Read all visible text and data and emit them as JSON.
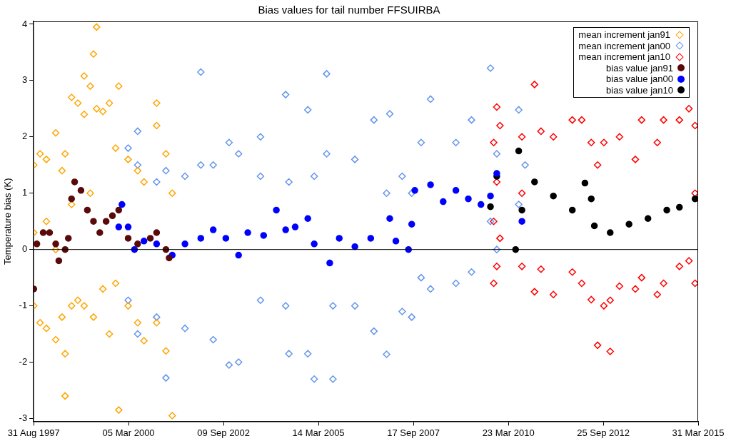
{
  "chart_data": {
    "type": "scatter",
    "title": "Bias values for tail number FFSUIRBA",
    "ylabel": "Temperature bias (K)",
    "xlim": [
      "1997-08-31",
      "2015-03-31"
    ],
    "ylim": [
      -3.05,
      4.05
    ],
    "xticks": [
      {
        "value": "1997-08-31",
        "label": "31 Aug 1997"
      },
      {
        "value": "2000-03-05",
        "label": "05 Mar 2000"
      },
      {
        "value": "2002-09-09",
        "label": "09 Sep 2002"
      },
      {
        "value": "2005-03-14",
        "label": "14 Mar 2005"
      },
      {
        "value": "2007-09-17",
        "label": "17 Sep 2007"
      },
      {
        "value": "2010-03-23",
        "label": "23 Mar 2010"
      },
      {
        "value": "2012-09-25",
        "label": "25 Sep 2012"
      },
      {
        "value": "2015-03-31",
        "label": "31 Mar 2015"
      }
    ],
    "yticks": [
      -3,
      -2,
      -1,
      0,
      1,
      2,
      3,
      4
    ],
    "grid": false,
    "legend": "top right",
    "ref_lines": [
      {
        "axis": "y",
        "value": 0,
        "color": "#000000"
      }
    ],
    "series": [
      {
        "name": "mean increment jan91",
        "marker": "diamond",
        "color": "#ffa500",
        "x": [
          "1997-09",
          "1997-09",
          "1997-09",
          "1997-11",
          "1997-11",
          "1998-01",
          "1998-01",
          "1998-01",
          "1998-04",
          "1998-04",
          "1998-04",
          "1998-06",
          "1998-06",
          "1998-07",
          "1998-07",
          "1998-07",
          "1998-09",
          "1998-09",
          "1998-09",
          "1998-11",
          "1998-11",
          "1999-01",
          "1999-01",
          "1999-01",
          "1999-03",
          "1999-03",
          "1999-04",
          "1999-04",
          "1999-05",
          "1999-05",
          "1999-07",
          "1999-07",
          "1999-09",
          "1999-09",
          "1999-11",
          "1999-11",
          "1999-12",
          "1999-12",
          "2000-03",
          "2000-03",
          "2000-06",
          "2000-06",
          "2000-08",
          "2000-08",
          "2000-12",
          "2000-12",
          "2000-12",
          "2001-03",
          "2001-03",
          "2001-05",
          "2001-05"
        ],
        "values": [
          1.5,
          -1.0,
          0.3,
          1.7,
          -1.3,
          1.6,
          -1.4,
          0.5,
          2.07,
          -1.6,
          0.0,
          1.4,
          -1.2,
          -2.6,
          -1.85,
          1.7,
          2.7,
          -1.0,
          0.8,
          2.6,
          -0.9,
          3.08,
          2.4,
          -1.0,
          2.9,
          1.0,
          3.47,
          -1.2,
          3.95,
          2.5,
          2.45,
          -0.7,
          2.6,
          -1.5,
          1.8,
          -0.6,
          2.9,
          -2.85,
          1.6,
          -1.0,
          1.4,
          -1.3,
          -1.62,
          1.2,
          2.6,
          2.2,
          -1.3,
          1.7,
          -1.8,
          -2.95,
          1.0
        ]
      },
      {
        "name": "mean increment jan00",
        "marker": "diamond",
        "color": "#6495ed",
        "x": [
          "2000-03",
          "2000-03",
          "2000-06",
          "2000-06",
          "2000-06",
          "2000-12",
          "2000-12",
          "2001-03",
          "2001-03",
          "2001-09",
          "2001-09",
          "2002-02",
          "2002-02",
          "2002-06",
          "2002-06",
          "2002-11",
          "2002-11",
          "2003-02",
          "2003-02",
          "2003-09",
          "2003-09",
          "2003-09",
          "2004-05",
          "2004-05",
          "2004-06",
          "2004-06",
          "2004-12",
          "2004-12",
          "2005-02",
          "2005-02",
          "2005-06",
          "2005-06",
          "2005-08",
          "2005-08",
          "2006-03",
          "2006-03",
          "2006-09",
          "2006-09",
          "2007-01",
          "2007-01",
          "2007-02",
          "2007-06",
          "2007-06",
          "2007-09",
          "2007-09",
          "2007-12",
          "2007-12",
          "2008-03",
          "2008-03",
          "2008-11",
          "2008-11",
          "2009-04",
          "2009-04",
          "2009-10",
          "2009-10",
          "2009-12",
          "2009-12",
          "2010-07",
          "2010-07",
          "2010-09"
        ],
        "values": [
          1.8,
          -0.9,
          1.5,
          -1.5,
          2.1,
          1.2,
          -1.2,
          -2.28,
          1.4,
          1.3,
          -1.4,
          3.15,
          1.5,
          1.5,
          -1.6,
          1.9,
          -2.05,
          -2.0,
          1.7,
          1.3,
          -0.9,
          2.0,
          2.75,
          -1.0,
          -1.85,
          1.2,
          2.48,
          -1.85,
          -2.3,
          1.3,
          3.12,
          1.7,
          -2.3,
          -1.0,
          1.6,
          -1.0,
          2.3,
          -1.45,
          -1.86,
          1.0,
          2.41,
          1.3,
          -1.1,
          -1.2,
          1.0,
          1.9,
          -0.5,
          2.67,
          -0.7,
          1.9,
          -0.6,
          2.3,
          -0.4,
          3.22,
          0.5,
          1.7,
          0.0,
          2.48,
          0.8,
          1.5
        ]
      },
      {
        "name": "mean increment jan10",
        "marker": "diamond",
        "color": "#ff0000",
        "x": [
          "2009-11",
          "2009-11",
          "2009-11",
          "2009-12",
          "2009-12",
          "2009-12",
          "2010-01",
          "2010-01",
          "2010-08",
          "2010-08",
          "2010-08",
          "2010-12",
          "2010-12",
          "2011-02",
          "2011-02",
          "2011-06",
          "2011-06",
          "2011-12",
          "2011-12",
          "2012-03",
          "2012-03",
          "2012-06",
          "2012-06",
          "2012-08",
          "2012-08",
          "2012-10",
          "2012-10",
          "2012-12",
          "2012-12",
          "2013-03",
          "2013-03",
          "2013-08",
          "2013-08",
          "2013-10",
          "2013-10",
          "2014-03",
          "2014-03",
          "2014-05",
          "2014-05",
          "2014-10",
          "2014-10",
          "2015-01",
          "2015-01",
          "2015-03",
          "2015-03",
          "2015-03"
        ],
        "values": [
          1.9,
          -0.6,
          0.5,
          2.53,
          -0.3,
          1.2,
          2.2,
          0.2,
          2.0,
          -0.3,
          1.0,
          2.93,
          -0.75,
          2.1,
          -0.35,
          2.0,
          -0.8,
          2.3,
          -0.4,
          2.3,
          -0.6,
          1.9,
          -0.89,
          -1.7,
          1.5,
          1.9,
          -1.0,
          -1.81,
          -0.9,
          2.0,
          -0.65,
          1.6,
          -0.7,
          2.3,
          -0.5,
          1.9,
          -0.8,
          2.3,
          -0.6,
          2.3,
          -0.3,
          2.5,
          -0.2,
          2.2,
          -0.6,
          1.0
        ]
      },
      {
        "name": "bias value jan91",
        "marker": "circle",
        "color": "#5a0a0a",
        "x": [
          "1997-09",
          "1997-10",
          "1997-12",
          "1998-02",
          "1998-04",
          "1998-05",
          "1998-07",
          "1998-08",
          "1998-09",
          "1998-10",
          "1998-12",
          "1999-02",
          "1999-04",
          "1999-06",
          "1999-08",
          "1999-10",
          "1999-12",
          "2000-03",
          "2000-06",
          "2000-10",
          "2000-12",
          "2001-03",
          "2001-04"
        ],
        "values": [
          -0.7,
          0.1,
          0.3,
          0.3,
          0.1,
          -0.2,
          0.0,
          0.2,
          0.9,
          1.2,
          1.05,
          0.7,
          0.5,
          0.3,
          0.5,
          0.6,
          0.7,
          0.2,
          0.1,
          0.2,
          0.3,
          0.0,
          -0.15
        ]
      },
      {
        "name": "bias value jan00",
        "marker": "circle",
        "color": "#0000ff",
        "x": [
          "1999-12",
          "2000-01",
          "2000-03",
          "2000-05",
          "2000-08",
          "2000-12",
          "2001-05",
          "2001-09",
          "2002-02",
          "2002-06",
          "2002-10",
          "2003-02",
          "2003-05",
          "2003-10",
          "2004-02",
          "2004-05",
          "2004-08",
          "2004-12",
          "2005-02",
          "2005-07",
          "2005-10",
          "2006-03",
          "2006-08",
          "2007-02",
          "2007-04",
          "2007-08",
          "2007-09",
          "2007-10",
          "2008-03",
          "2008-07",
          "2008-11",
          "2009-03",
          "2009-07",
          "2009-10",
          "2009-12",
          "2010-08"
        ],
        "values": [
          0.4,
          0.8,
          0.4,
          0.0,
          0.15,
          0.1,
          -0.1,
          0.1,
          0.2,
          0.35,
          0.2,
          -0.1,
          0.3,
          0.25,
          0.7,
          0.35,
          0.4,
          0.55,
          0.1,
          -0.24,
          0.2,
          0.05,
          0.2,
          0.55,
          0.15,
          0.0,
          0.45,
          1.05,
          1.15,
          0.85,
          1.05,
          0.9,
          0.8,
          0.95,
          1.35,
          0.5
        ]
      },
      {
        "name": "bias value jan10",
        "marker": "circle",
        "color": "#000000",
        "x": [
          "2009-10",
          "2009-12",
          "2010-06",
          "2010-07",
          "2010-08",
          "2010-12",
          "2011-06",
          "2011-12",
          "2012-04",
          "2012-06",
          "2012-07",
          "2012-12",
          "2013-06",
          "2013-12",
          "2014-06",
          "2014-10",
          "2015-03"
        ],
        "values": [
          0.76,
          1.3,
          0.0,
          1.75,
          0.7,
          1.2,
          0.95,
          0.7,
          1.18,
          0.9,
          0.42,
          0.3,
          0.45,
          0.55,
          0.7,
          0.75,
          0.9
        ]
      }
    ]
  }
}
